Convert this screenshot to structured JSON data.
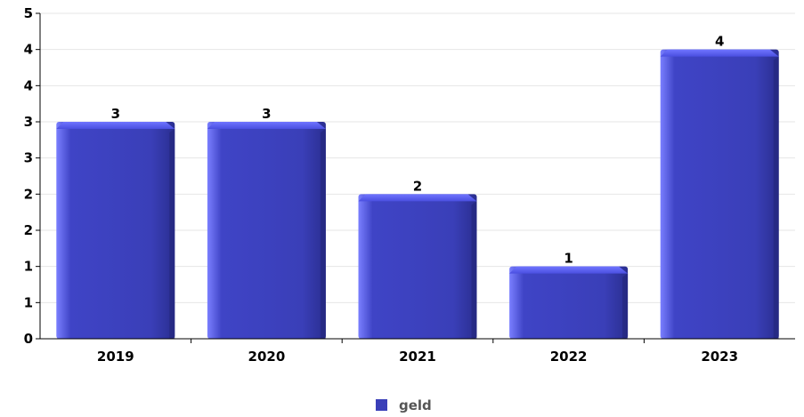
{
  "chart_data": {
    "type": "bar",
    "categories": [
      "2019",
      "2020",
      "2021",
      "2022",
      "2023"
    ],
    "series": [
      {
        "name": "geld",
        "values": [
          3,
          3,
          2,
          1,
          4
        ]
      }
    ],
    "data_labels": [
      "3",
      "3",
      "2",
      "1",
      "4"
    ],
    "y_tick_labels": [
      "0",
      "1",
      "1",
      "2",
      "2",
      "3",
      "3",
      "4",
      "4",
      "5"
    ],
    "ylim": [
      0,
      4.5
    ],
    "grid": true,
    "legend_position": "bottom-center",
    "colors": {
      "bar": "#3a3fb8",
      "bar_light": "#6f74ff",
      "bar_dark": "#23277a",
      "bar_top": "#5a5fff",
      "grid": "#e6e6e6",
      "axis": "#000000"
    }
  }
}
